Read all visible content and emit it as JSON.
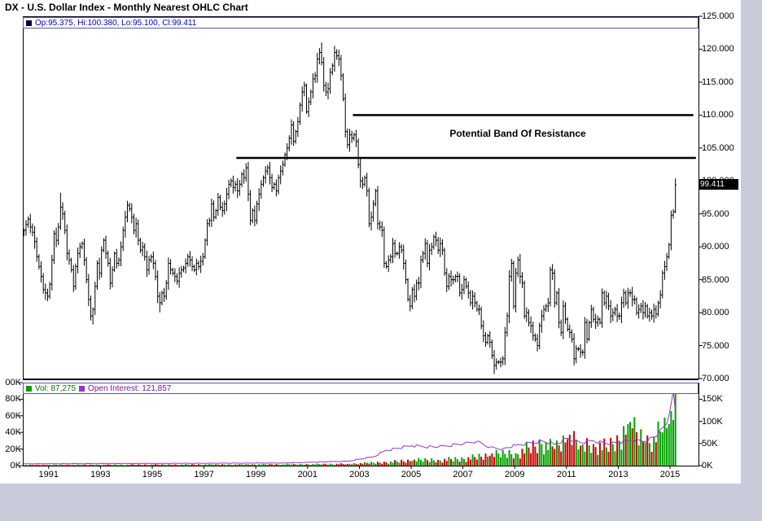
{
  "title": "DX - U.S. Dollar Index - Monthly Nearest OHLC Chart",
  "main": {
    "legend": "Op:95.375, Hi:100.380, Lo:95.100, Cl:99.411",
    "annotation": "Potential Band Of Resistance",
    "last_price_label": "99.411",
    "price_ticks": [
      "125.000",
      "120.000",
      "115.000",
      "110.000",
      "105.000",
      "100.000",
      "95.000",
      "90.000",
      "85.000",
      "80.000",
      "75.000",
      "70.000"
    ]
  },
  "volume_panel": {
    "vol_legend": "Vol: 87,275",
    "oi_legend": "Open Interest: 121,857",
    "left_ticks": [
      {
        "label": "00K",
        "value": 100
      },
      {
        "label": "80K",
        "value": 80
      },
      {
        "label": "60K",
        "value": 60
      },
      {
        "label": "40K",
        "value": 40
      },
      {
        "label": "20K",
        "value": 20
      },
      {
        "label": "0K",
        "value": 0
      }
    ],
    "right_ticks": [
      {
        "label": "150K",
        "value": 150
      },
      {
        "label": "100K",
        "value": 100
      },
      {
        "label": "50K",
        "value": 50
      },
      {
        "label": "0K",
        "value": 0
      }
    ]
  },
  "x_ticks": [
    "1991",
    "1993",
    "1995",
    "1997",
    "1999",
    "2001",
    "2003",
    "2005",
    "2007",
    "2009",
    "2011",
    "2013",
    "2015"
  ],
  "colors": {
    "bar": "#000000",
    "up_vol": "#00a000",
    "down_vol": "#cc0000",
    "open_interest": "#9933cc",
    "legend_text": "#0000cc",
    "vol_text": "#007700",
    "oi_text": "#7711aa",
    "frame": "#000000",
    "page_bg": "#c9cada",
    "legend_square": "#000040"
  },
  "chart_data": {
    "type": "ohlc",
    "title": "DX - U.S. Dollar Index - Monthly Nearest OHLC Chart",
    "freq": "monthly",
    "start": "1990-01",
    "end": "2015-03",
    "price_range": [
      70,
      125
    ],
    "last_bar": {
      "open": 95.375,
      "high": 100.38,
      "low": 95.1,
      "close": 99.411
    },
    "volume_last": 87275,
    "open_interest_last": 121857,
    "closes": [
      92.5,
      93.4,
      94.2,
      93.0,
      92.2,
      90.8,
      88.5,
      87.0,
      85.5,
      83.5,
      83.0,
      82.5,
      84.3,
      88.0,
      92.0,
      91.0,
      93.0,
      96.0,
      95.0,
      92.5,
      89.0,
      88.0,
      86.5,
      84.0,
      87.0,
      89.0,
      90.0,
      90.5,
      88.0,
      85.0,
      82.0,
      79.5,
      80.5,
      84.0,
      87.5,
      86.0,
      89.5,
      91.0,
      89.0,
      87.5,
      84.5,
      86.5,
      89.0,
      87.5,
      88.0,
      90.0,
      92.5,
      94.5,
      96.3,
      95.8,
      94.5,
      92.5,
      93.5,
      91.0,
      89.5,
      90.0,
      88.5,
      86.5,
      88.0,
      88.5,
      87.5,
      85.5,
      82.5,
      81.5,
      83.0,
      82.5,
      84.5,
      87.5,
      86.5,
      86.0,
      85.5,
      84.8,
      86.0,
      86.5,
      86.8,
      87.5,
      88.5,
      88.0,
      87.0,
      86.5,
      87.5,
      87.0,
      87.8,
      88.5,
      91.0,
      93.5,
      94.0,
      96.5,
      94.5,
      95.5,
      97.5,
      96.0,
      95.5,
      96.5,
      98.0,
      99.5,
      100.0,
      99.0,
      99.5,
      98.5,
      99.5,
      101.0,
      100.5,
      102.0,
      98.0,
      94.0,
      95.5,
      94.0,
      96.5,
      98.0,
      99.5,
      100.5,
      101.5,
      102.0,
      100.5,
      99.0,
      99.5,
      98.5,
      100.5,
      101.5,
      102.5,
      104.0,
      105.0,
      106.5,
      108.5,
      106.0,
      107.5,
      109.0,
      111.5,
      113.5,
      114.5,
      110.5,
      112.0,
      113.5,
      115.5,
      116.0,
      118.5,
      119.5,
      118.0,
      114.5,
      113.5,
      114.0,
      116.5,
      117.5,
      119.5,
      119.0,
      118.5,
      116.0,
      112.5,
      107.5,
      105.5,
      107.0,
      106.5,
      107.0,
      106.0,
      102.5,
      100.0,
      99.5,
      100.5,
      98.5,
      93.5,
      94.5,
      96.5,
      98.5,
      93.5,
      93.0,
      92.5,
      87.5,
      87.0,
      88.0,
      88.5,
      90.5,
      89.0,
      89.0,
      90.0,
      89.5,
      87.5,
      85.0,
      82.0,
      81.0,
      83.5,
      82.5,
      84.5,
      84.5,
      88.0,
      89.0,
      90.5,
      87.5,
      89.5,
      90.0,
      91.5,
      91.0,
      89.5,
      90.5,
      89.5,
      86.0,
      84.0,
      85.5,
      85.0,
      85.0,
      85.5,
      85.5,
      83.0,
      83.5,
      85.0,
      84.0,
      83.0,
      81.5,
      82.5,
      81.5,
      80.5,
      80.5,
      78.0,
      76.5,
      75.5,
      76.5,
      75.5,
      73.5,
      72.0,
      72.5,
      72.5,
      72.5,
      73.0,
      77.0,
      79.5,
      85.5,
      87.5,
      81.0,
      86.0,
      88.0,
      85.5,
      84.5,
      79.5,
      80.0,
      78.5,
      78.0,
      76.5,
      76.0,
      75.0,
      78.0,
      79.5,
      80.5,
      81.0,
      81.5,
      86.5,
      86.0,
      81.5,
      83.0,
      78.5,
      77.0,
      81.0,
      79.0,
      77.5,
      77.0,
      76.0,
      73.0,
      74.5,
      74.5,
      74.0,
      74.0,
      78.5,
      76.0,
      78.5,
      80.5,
      79.0,
      78.5,
      79.0,
      78.5,
      83.0,
      81.5,
      82.5,
      81.0,
      79.5,
      80.0,
      80.5,
      79.5,
      79.5,
      81.5,
      83.0,
      81.5,
      83.0,
      83.0,
      82.0,
      82.0,
      80.0,
      80.5,
      81.0,
      80.0,
      81.0,
      79.5,
      80.0,
      79.5,
      80.5,
      79.8,
      81.5,
      82.7,
      86.0,
      87.0,
      88.5,
      90.3,
      94.8,
      95.3,
      99.411
    ],
    "overrides": {
      "17": {
        "high": 98.2
      },
      "32": {
        "low": 78.2
      },
      "63": {
        "low": 80.05
      },
      "103": {
        "high": 102.7
      },
      "138": {
        "high": 121.02
      },
      "144": {
        "high": 120.5
      },
      "218": {
        "low": 70.7
      },
      "302": {
        "open": 95.375,
        "high": 100.38,
        "low": 95.1,
        "close": 99.411
      }
    },
    "resistance_lines": [
      {
        "price": 110.0,
        "from_year": 2002.75,
        "to_year": 2015.9
      },
      {
        "price": 103.5,
        "from_year": 1998.25,
        "to_year": 2016.0
      }
    ],
    "volume_anchors_k": [
      [
        0,
        0.8
      ],
      [
        60,
        1.2
      ],
      [
        120,
        1.5
      ],
      [
        150,
        2
      ],
      [
        168,
        4
      ],
      [
        180,
        6
      ],
      [
        192,
        7
      ],
      [
        204,
        8
      ],
      [
        216,
        12
      ],
      [
        228,
        15
      ],
      [
        240,
        26
      ],
      [
        246,
        20
      ],
      [
        252,
        32
      ],
      [
        258,
        24
      ],
      [
        264,
        26
      ],
      [
        270,
        22
      ],
      [
        276,
        30
      ],
      [
        280,
        50
      ],
      [
        282,
        45
      ],
      [
        288,
        28
      ],
      [
        292,
        35
      ],
      [
        296,
        40
      ],
      [
        299,
        50
      ],
      [
        301,
        55
      ],
      [
        302,
        87.275
      ]
    ],
    "open_interest_anchors_k": [
      [
        0,
        4
      ],
      [
        120,
        6
      ],
      [
        150,
        10
      ],
      [
        162,
        20
      ],
      [
        168,
        35
      ],
      [
        180,
        45
      ],
      [
        192,
        42
      ],
      [
        204,
        50
      ],
      [
        210,
        55
      ],
      [
        216,
        42
      ],
      [
        222,
        38
      ],
      [
        228,
        46
      ],
      [
        240,
        56
      ],
      [
        246,
        48
      ],
      [
        252,
        62
      ],
      [
        258,
        52
      ],
      [
        264,
        56
      ],
      [
        270,
        50
      ],
      [
        276,
        52
      ],
      [
        282,
        58
      ],
      [
        288,
        55
      ],
      [
        294,
        70
      ],
      [
        298,
        95
      ],
      [
        300,
        140
      ],
      [
        301,
        168
      ],
      [
        302,
        121.857
      ]
    ]
  }
}
